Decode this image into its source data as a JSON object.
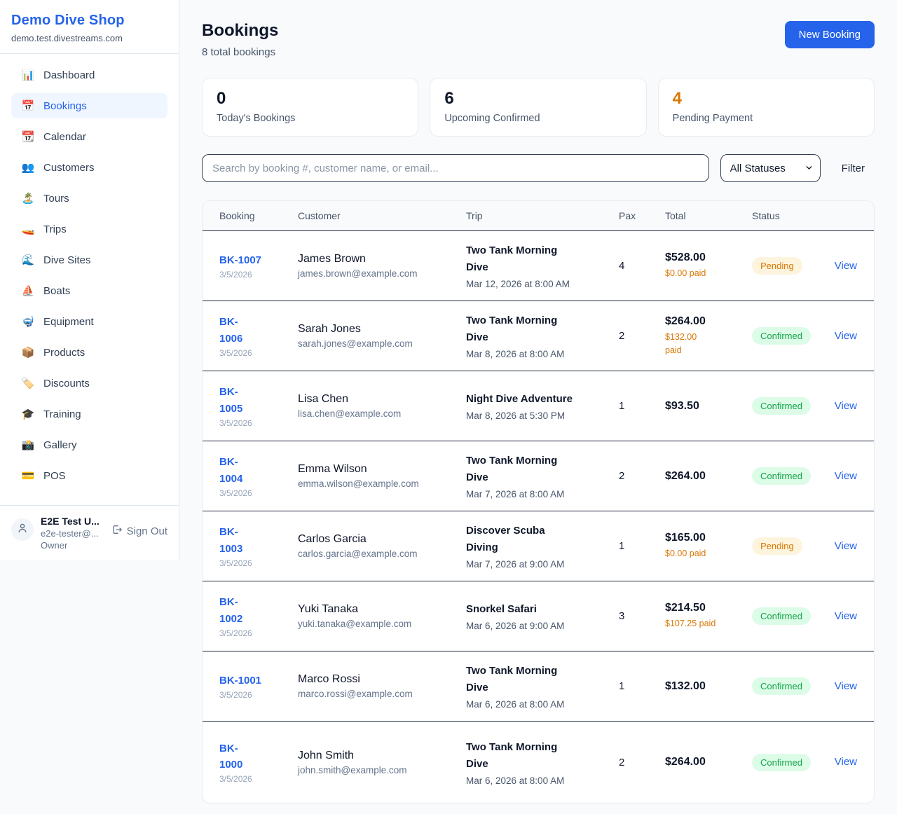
{
  "sidebar": {
    "brand": {
      "name": "Demo Dive Shop",
      "domain": "demo.test.divestreams.com"
    },
    "items": [
      {
        "label": "Dashboard",
        "icon": "📊",
        "active": false
      },
      {
        "label": "Bookings",
        "icon": "📅",
        "active": true
      },
      {
        "label": "Calendar",
        "icon": "📆",
        "active": false
      },
      {
        "label": "Customers",
        "icon": "👥",
        "active": false
      },
      {
        "label": "Tours",
        "icon": "🏝️",
        "active": false
      },
      {
        "label": "Trips",
        "icon": "🚤",
        "active": false
      },
      {
        "label": "Dive Sites",
        "icon": "🌊",
        "active": false
      },
      {
        "label": "Boats",
        "icon": "⛵",
        "active": false
      },
      {
        "label": "Equipment",
        "icon": "🤿",
        "active": false
      },
      {
        "label": "Products",
        "icon": "📦",
        "active": false
      },
      {
        "label": "Discounts",
        "icon": "🏷️",
        "active": false
      },
      {
        "label": "Training",
        "icon": "🎓",
        "active": false
      },
      {
        "label": "Gallery",
        "icon": "📸",
        "active": false
      },
      {
        "label": "POS",
        "icon": "💳",
        "active": false
      }
    ],
    "user": {
      "name": "E2E Test U...",
      "email": "e2e-tester@...",
      "role": "Owner",
      "sign_out_label": "Sign Out"
    }
  },
  "header": {
    "title": "Bookings",
    "subtitle": "8 total bookings",
    "new_booking_label": "New Booking"
  },
  "stats": [
    {
      "value": "0",
      "label": "Today's Bookings",
      "value_color": "#0f172a"
    },
    {
      "value": "6",
      "label": "Upcoming Confirmed",
      "value_color": "#0f172a"
    },
    {
      "value": "4",
      "label": "Pending Payment",
      "value_color": "#d97706"
    }
  ],
  "filters": {
    "search_placeholder": "Search by booking #, customer name, or email...",
    "status_selected": "All Statuses",
    "filter_label": "Filter"
  },
  "table": {
    "columns": [
      "Booking",
      "Customer",
      "Trip",
      "Pax",
      "Total",
      "Status"
    ],
    "view_label": "View",
    "rows": [
      {
        "id": "BK-1007",
        "id_display": "BK-1007",
        "date": "3/5/2026",
        "customer": "James Brown",
        "email": "james.brown@example.com",
        "trip": "Two Tank Morning\nDive",
        "trip_date": "Mar 12, 2026 at 8:00 AM",
        "pax": "4",
        "total": "$528.00",
        "paid": "$0.00 paid",
        "status": "Pending"
      },
      {
        "id": "BK-1006",
        "id_display": "BK-\n1006",
        "date": "3/5/2026",
        "customer": "Sarah Jones",
        "email": "sarah.jones@example.com",
        "trip": "Two Tank Morning\nDive",
        "trip_date": "Mar 8, 2026 at 8:00 AM",
        "pax": "2",
        "total": "$264.00",
        "paid": "$132.00\npaid",
        "status": "Confirmed"
      },
      {
        "id": "BK-1005",
        "id_display": "BK-\n1005",
        "date": "3/5/2026",
        "customer": "Lisa Chen",
        "email": "lisa.chen@example.com",
        "trip": "Night Dive Adventure",
        "trip_date": "Mar 8, 2026 at 5:30 PM",
        "pax": "1",
        "total": "$93.50",
        "paid": null,
        "status": "Confirmed"
      },
      {
        "id": "BK-1004",
        "id_display": "BK-\n1004",
        "date": "3/5/2026",
        "customer": "Emma Wilson",
        "email": "emma.wilson@example.com",
        "trip": "Two Tank Morning\nDive",
        "trip_date": "Mar 7, 2026 at 8:00 AM",
        "pax": "2",
        "total": "$264.00",
        "paid": null,
        "status": "Confirmed"
      },
      {
        "id": "BK-1003",
        "id_display": "BK-\n1003",
        "date": "3/5/2026",
        "customer": "Carlos Garcia",
        "email": "carlos.garcia@example.com",
        "trip": "Discover Scuba\nDiving",
        "trip_date": "Mar 7, 2026 at 9:00 AM",
        "pax": "1",
        "total": "$165.00",
        "paid": "$0.00 paid",
        "status": "Pending"
      },
      {
        "id": "BK-1002",
        "id_display": "BK-\n1002",
        "date": "3/5/2026",
        "customer": "Yuki Tanaka",
        "email": "yuki.tanaka@example.com",
        "trip": "Snorkel Safari",
        "trip_date": "Mar 6, 2026 at 9:00 AM",
        "pax": "3",
        "total": "$214.50",
        "paid": "$107.25 paid",
        "status": "Confirmed"
      },
      {
        "id": "BK-1001",
        "id_display": "BK-1001",
        "date": "3/5/2026",
        "customer": "Marco Rossi",
        "email": "marco.rossi@example.com",
        "trip": "Two Tank Morning\nDive",
        "trip_date": "Mar 6, 2026 at 8:00 AM",
        "pax": "1",
        "total": "$132.00",
        "paid": null,
        "status": "Confirmed"
      },
      {
        "id": "BK-1000",
        "id_display": "BK-\n1000",
        "date": "3/5/2026",
        "customer": "John Smith",
        "email": "john.smith@example.com",
        "trip": "Two Tank Morning\nDive",
        "trip_date": "Mar 6, 2026 at 8:00 AM",
        "pax": "2",
        "total": "$264.00",
        "paid": null,
        "status": "Confirmed"
      }
    ]
  },
  "colors": {
    "accent_blue": "#2563eb",
    "pending_text": "#d97706",
    "pending_bg": "#fcf4dc",
    "confirmed_text": "#16a34a",
    "confirmed_bg": "#dcfce7",
    "page_bg": "#f8fafc"
  }
}
